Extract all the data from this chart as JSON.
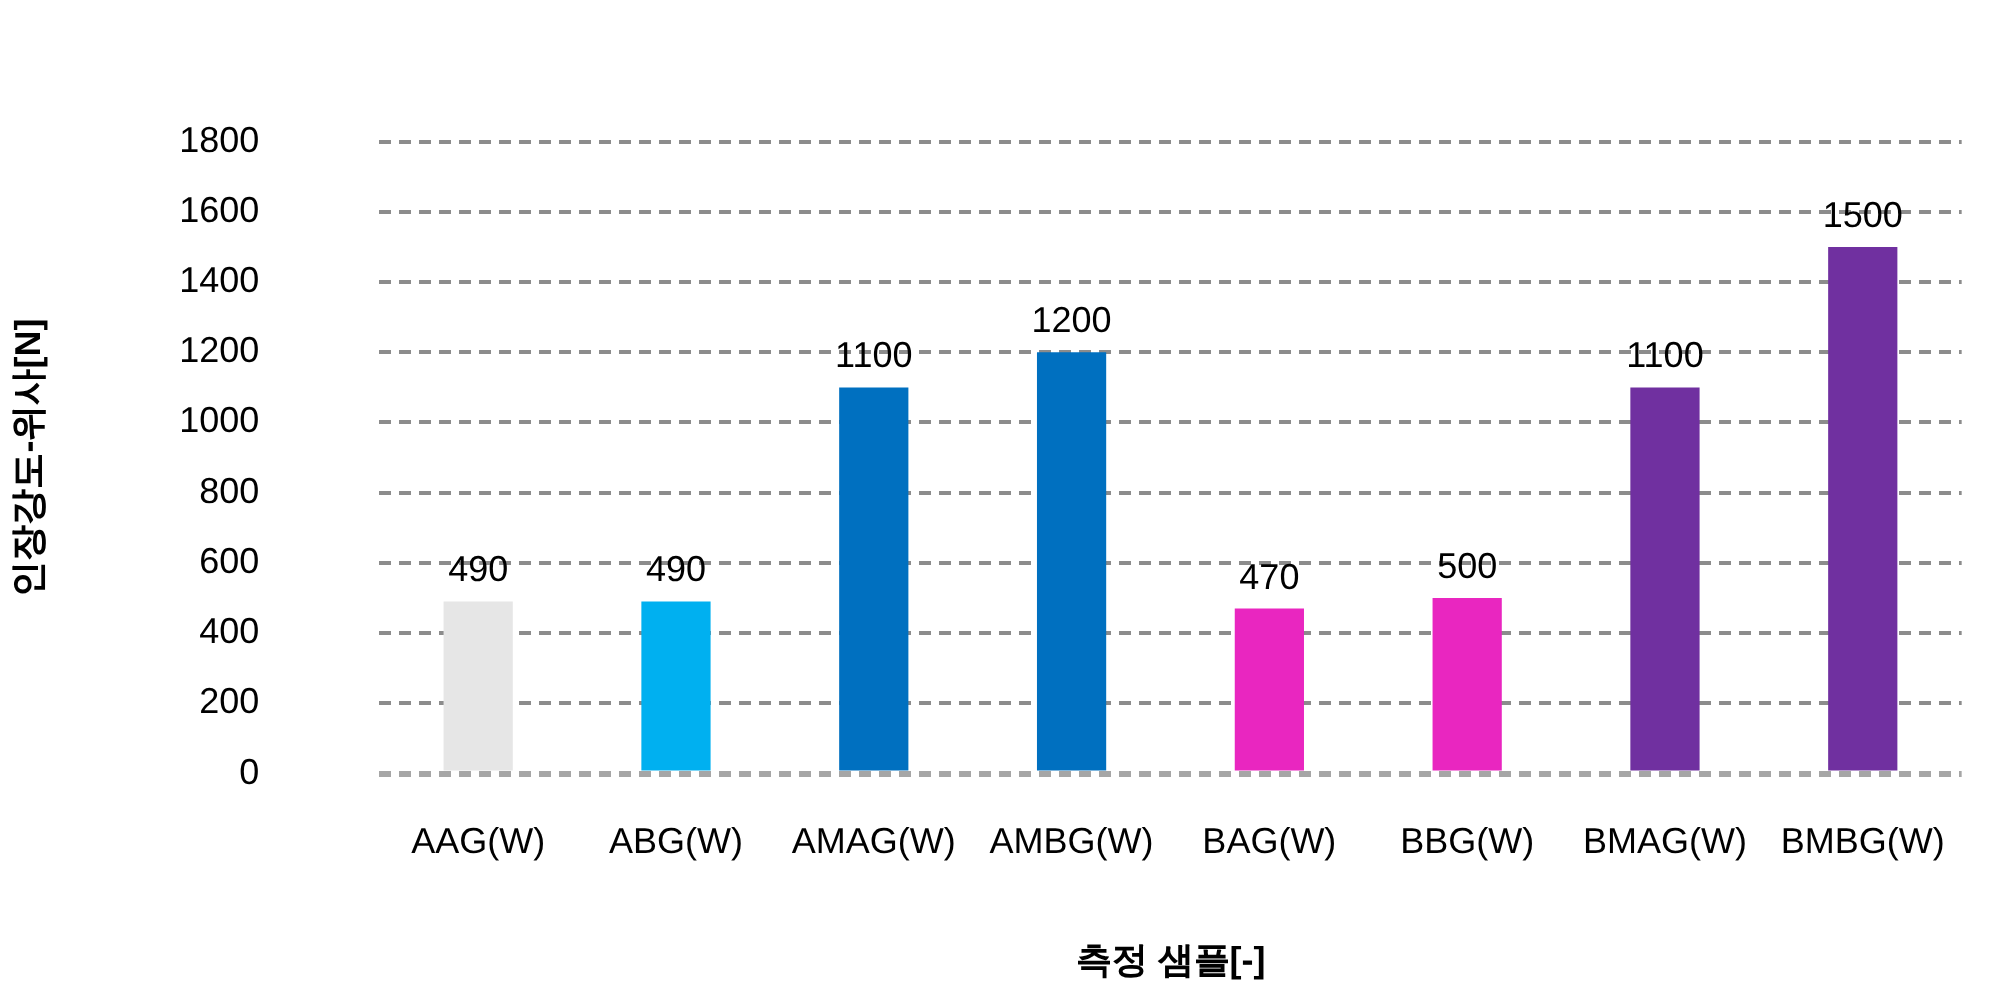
{
  "chart_data": {
    "type": "bar",
    "xlabel": "측정 샘플[-]",
    "ylabel": "인장강도-위사[N]",
    "categories": [
      "AAG(W)",
      "ABG(W)",
      "AMAG(W)",
      "AMBG(W)",
      "BAG(W)",
      "BBG(W)",
      "BMAG(W)",
      "BMBG(W)"
    ],
    "values": [
      490,
      490,
      1100,
      1200,
      470,
      500,
      1100,
      1500
    ],
    "colors": [
      "#e6e6e6",
      "#00b0f0",
      "#0070c0",
      "#0070c0",
      "#e926c0",
      "#e926c0",
      "#7030a0",
      "#7030a0"
    ],
    "ylim": [
      0,
      1800
    ],
    "yticks": [
      0,
      200,
      400,
      600,
      800,
      1000,
      1200,
      1400,
      1600,
      1800
    ],
    "grid": "y",
    "data_labels": true,
    "legend": false
  }
}
